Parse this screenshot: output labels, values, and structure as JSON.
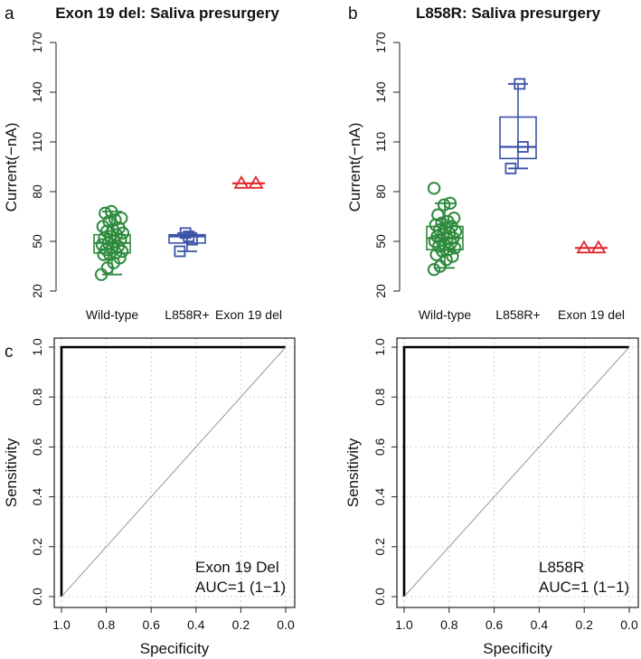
{
  "chart_data": [
    {
      "panel": "a",
      "type": "box",
      "title": "Exon 19 del: Saliva presurgery",
      "xlabel": "",
      "ylabel": "Current(−nA)",
      "ylim": [
        20,
        170
      ],
      "yticks": [
        20,
        50,
        80,
        110,
        140,
        170
      ],
      "categories": [
        "Wild-type",
        "L858R+",
        "Exon 19 del"
      ],
      "colors": [
        "#2e8b3e",
        "#3a52a6",
        "#e0262b"
      ],
      "markers": [
        "circle",
        "square",
        "triangle"
      ],
      "boxes": [
        {
          "q1": 43,
          "median": 49,
          "q3": 54,
          "whisker_low": 30,
          "whisker_high": 68
        },
        {
          "q1": 49,
          "median": 53,
          "q3": 54,
          "whisker_low": 44,
          "whisker_high": 55
        },
        {
          "q1": 85,
          "median": 85,
          "q3": 85,
          "whisker_low": 85,
          "whisker_high": 85
        }
      ],
      "points": [
        [
          30,
          34,
          37,
          40,
          42,
          42,
          43,
          44,
          45,
          46,
          47,
          48,
          49,
          50,
          51,
          52,
          53,
          54,
          55,
          56,
          57,
          58,
          59,
          62,
          63,
          64,
          67,
          68
        ],
        [
          44,
          51,
          53,
          55
        ],
        [
          85,
          85
        ]
      ]
    },
    {
      "panel": "b",
      "type": "box",
      "title": "L858R: Saliva presurgery",
      "xlabel": "",
      "ylabel": "Current(−nA)",
      "ylim": [
        20,
        170
      ],
      "yticks": [
        20,
        50,
        80,
        110,
        140,
        170
      ],
      "categories": [
        "Wild-type",
        "L858R+",
        "Exon 19 del"
      ],
      "colors": [
        "#2e8b3e",
        "#3a52a6",
        "#e0262b"
      ],
      "markers": [
        "circle",
        "square",
        "triangle"
      ],
      "boxes": [
        {
          "q1": 45,
          "median": 52,
          "q3": 59,
          "whisker_low": 34,
          "whisker_high": 73
        },
        {
          "q1": 100,
          "median": 107,
          "q3": 125,
          "whisker_low": 94,
          "whisker_high": 145
        },
        {
          "q1": 46,
          "median": 46,
          "q3": 46,
          "whisker_low": 46,
          "whisker_high": 46
        }
      ],
      "points": [
        [
          33,
          35,
          39,
          41,
          42,
          44,
          45,
          46,
          47,
          48,
          49,
          50,
          51,
          52,
          52,
          53,
          54,
          55,
          56,
          57,
          58,
          59,
          60,
          61,
          62,
          64,
          66,
          72,
          73,
          82
        ],
        [
          94,
          107,
          145
        ],
        [
          46,
          46
        ]
      ]
    },
    {
      "panel": "c",
      "type": "line",
      "subtype": "roc",
      "xlabel": "Specificity",
      "ylabel": "Sensitivity",
      "xlim": [
        1.0,
        0.0
      ],
      "ylim": [
        0.0,
        1.0
      ],
      "xticks": [
        "1.0",
        "0.8",
        "0.6",
        "0.4",
        "0.2",
        "0.0"
      ],
      "yticks": [
        "0.0",
        "0.2",
        "0.4",
        "0.6",
        "0.8",
        "1.0"
      ],
      "grid": true,
      "series": [
        {
          "name": "ROC",
          "x": [
            1.0,
            1.0,
            0.0
          ],
          "y": [
            0.0,
            1.0,
            1.0
          ],
          "color": "#000000"
        },
        {
          "name": "reference",
          "x": [
            1.0,
            0.0
          ],
          "y": [
            0.0,
            1.0
          ],
          "color": "#a0a0a0"
        }
      ],
      "annotation_line1": "Exon 19 Del",
      "annotation_line2": "AUC=1 (1−1)"
    },
    {
      "panel": "",
      "type": "line",
      "subtype": "roc",
      "xlabel": "Specificity",
      "ylabel": "Sensitivity",
      "xlim": [
        1.0,
        0.0
      ],
      "ylim": [
        0.0,
        1.0
      ],
      "xticks": [
        "1.0",
        "0.8",
        "0.6",
        "0.4",
        "0.2",
        "0.0"
      ],
      "yticks": [
        "0.0",
        "0.2",
        "0.4",
        "0.6",
        "0.8",
        "1.0"
      ],
      "grid": true,
      "series": [
        {
          "name": "ROC",
          "x": [
            1.0,
            1.0,
            0.0
          ],
          "y": [
            0.0,
            1.0,
            1.0
          ],
          "color": "#000000"
        },
        {
          "name": "reference",
          "x": [
            1.0,
            0.0
          ],
          "y": [
            0.0,
            1.0
          ],
          "color": "#a0a0a0"
        }
      ],
      "annotation_line1": "L858R",
      "annotation_line2": "AUC=1 (1−1)"
    }
  ]
}
